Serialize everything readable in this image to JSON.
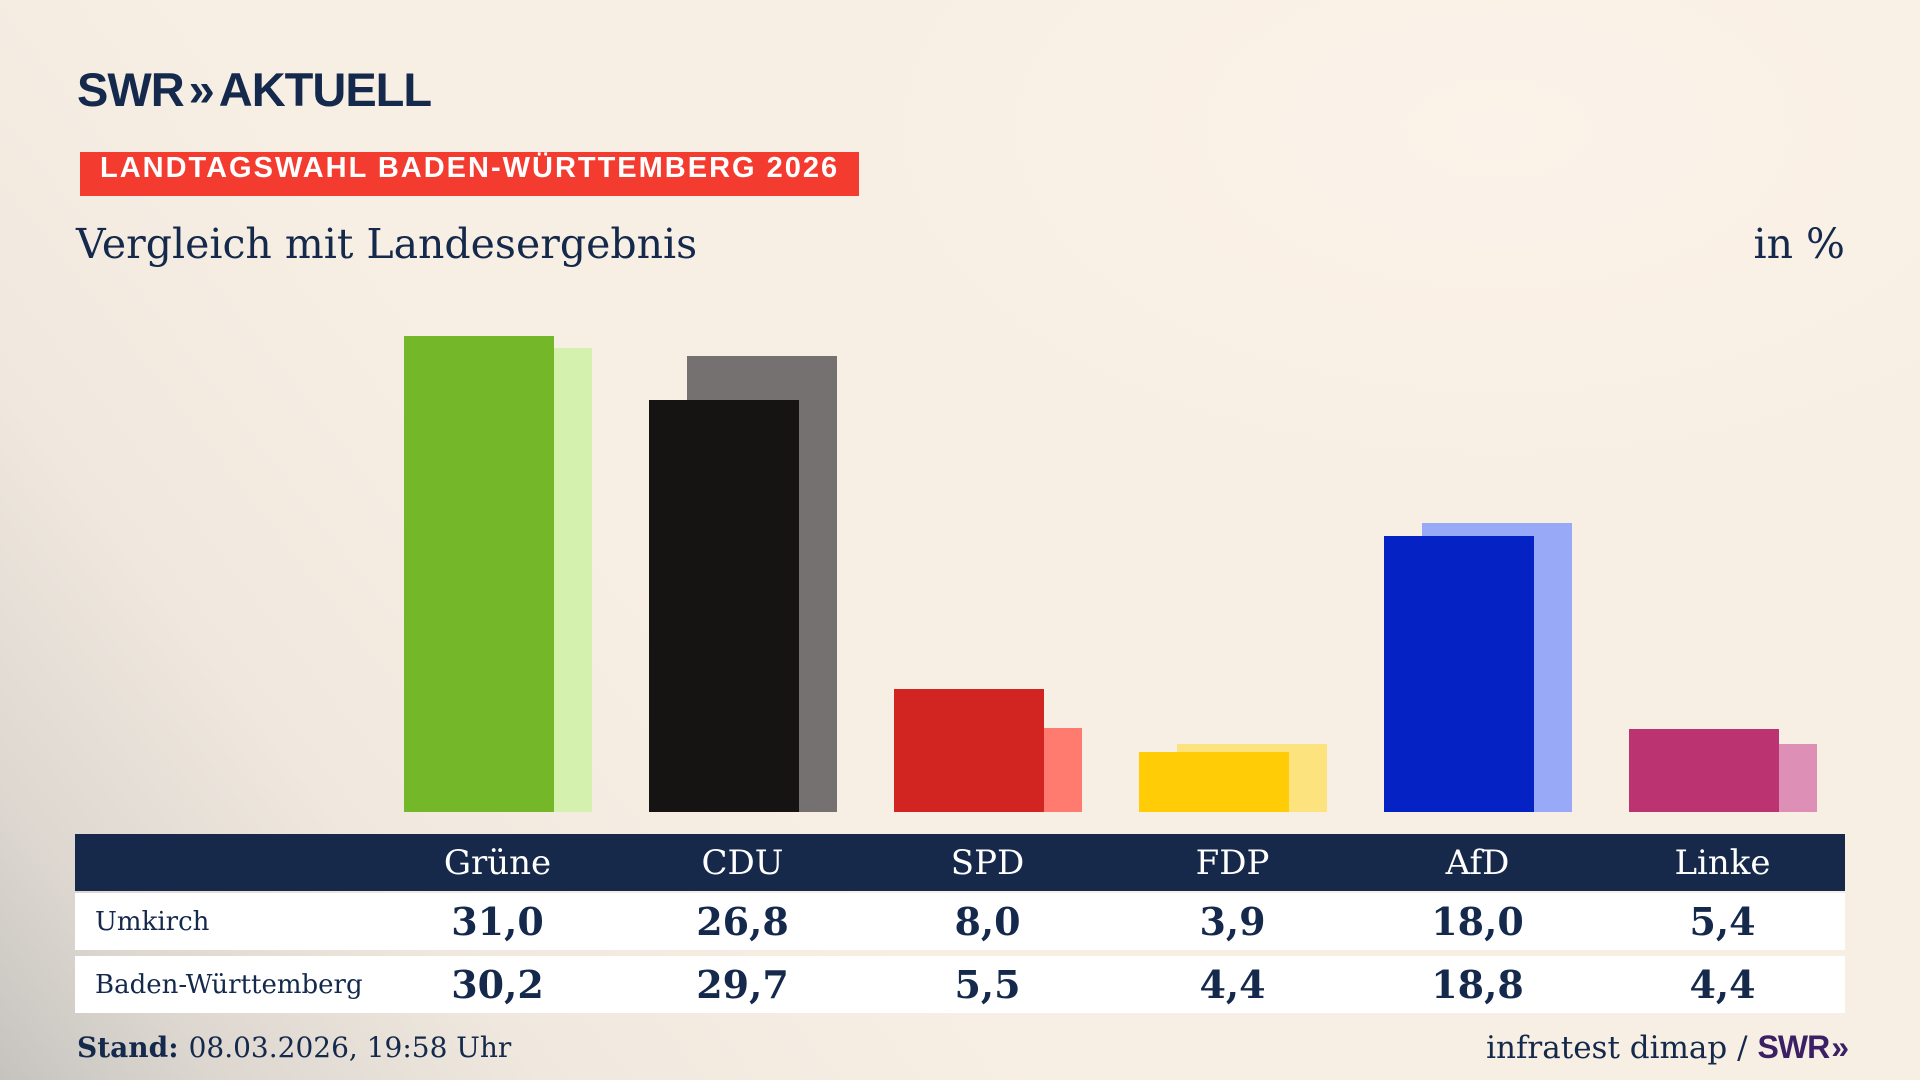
{
  "brand": {
    "swr": "SWR",
    "chevron": "»",
    "suffix": "AKTUELL"
  },
  "badge": {
    "text": "LANDTAGSWAHL BADEN-WÜRTTEMBERG 2026",
    "bg_color": "#f43b30"
  },
  "heading": {
    "title": "Vergleich mit Landesergebnis",
    "unit": "in %"
  },
  "chart_data": {
    "type": "bar",
    "title": "Vergleich mit Landesergebnis",
    "unit": "in %",
    "categories": [
      "Grüne",
      "CDU",
      "SPD",
      "FDP",
      "AfD",
      "Linke"
    ],
    "ids": [
      "gruene",
      "cdu",
      "spd",
      "fdp",
      "afd",
      "linke"
    ],
    "series": [
      {
        "id": "umkirch",
        "name": "Umkirch",
        "values": [
          31.0,
          26.8,
          8.0,
          3.9,
          18.0,
          5.4
        ]
      },
      {
        "id": "baden-wuerttemberg",
        "name": "Baden-Württemberg",
        "values": [
          30.2,
          29.7,
          5.5,
          4.4,
          18.8,
          4.4
        ]
      }
    ],
    "bar_colors": [
      {
        "front": "#74b829",
        "back": "#d4f2ae"
      },
      {
        "front": "#151413",
        "back": "#747170"
      },
      {
        "front": "#d22521",
        "back": "#ff7b70"
      },
      {
        "front": "#ffcc05",
        "back": "#fde37d"
      },
      {
        "front": "#0522c4",
        "back": "#98a9f7"
      },
      {
        "front": "#bb3371",
        "back": "#dd8fb6"
      }
    ],
    "ylim": [
      0,
      31
    ],
    "grid": false,
    "legend": "table-below",
    "value_format": "decimal-comma"
  },
  "table": {
    "columns": [
      "Grüne",
      "CDU",
      "SPD",
      "FDP",
      "AfD",
      "Linke"
    ],
    "row_labels": [
      "Umkirch",
      "Baden-Württemberg"
    ],
    "rows": [
      [
        "31,0",
        "26,8",
        "8,0",
        "3,9",
        "18,0",
        "5,4"
      ],
      [
        "30,2",
        "29,7",
        "5,5",
        "4,4",
        "18,8",
        "4,4"
      ]
    ],
    "header_bg": "#16294a",
    "row_bg": "#ffffff",
    "text_color": "#14294b"
  },
  "footer": {
    "stand_label": "Stand:",
    "stand_value": "08.03.2026, 19:58 Uhr",
    "source_text": "infratest dimap /",
    "source_brand": "SWR",
    "source_chevron": "»"
  }
}
